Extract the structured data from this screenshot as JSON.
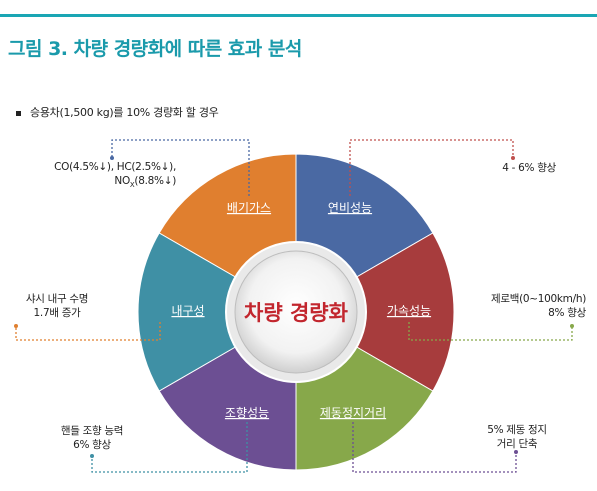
{
  "title": "그림 3. 차량 경량화에 따른 효과 분석",
  "subtitle": "승용차(1,500 kg)를 10% 경량화 할 경우",
  "center_label": "차량 경량화",
  "segments": [
    {
      "label": "배기가스",
      "color": "#e07f2f"
    },
    {
      "label": "연비성능",
      "color": "#4a69a3"
    },
    {
      "label": "가속성능",
      "color": "#a73c3d"
    },
    {
      "label": "제동정지거리",
      "color": "#87a84a"
    },
    {
      "label": "조향성능",
      "color": "#6c4f93"
    },
    {
      "label": "내구성",
      "color": "#3f90a5"
    }
  ],
  "notes": {
    "exhaust_line1": "CO(4.5%↓), HC(2.5%↓),",
    "exhaust_line2_prefix": "NO",
    "exhaust_line2_sub": "X",
    "exhaust_line2_suffix": "(8.8%↓)",
    "fuel": "4 - 6% 향상",
    "accel_line1": "제로백(0~100km/h)",
    "accel_line2": "8% 향상",
    "braking_line1": "5% 제동 정지",
    "braking_line2": "거리 단축",
    "steering_line1": "핸들 조향 능력",
    "steering_line2": "6% 향상",
    "durability_line1": "샤시 내구 수명",
    "durability_line2": "1.7배 증가"
  }
}
